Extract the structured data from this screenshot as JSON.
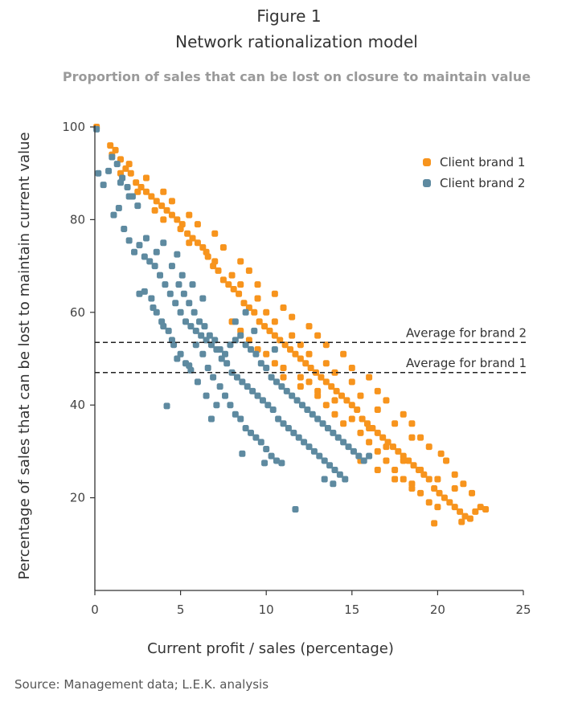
{
  "figure_label": "Figure 1",
  "title": "Network rationalization model",
  "subtitle": "Proportion of sales that can be lost on closure to maintain value",
  "source": "Source: Management data; L.E.K. analysis",
  "colors": {
    "brand1": "#F7941D",
    "brand2": "#5E8AA0",
    "axis": "#333333",
    "text": "#333333"
  },
  "chart_data": {
    "type": "scatter",
    "xlabel": "Current profit / sales (percentage)",
    "ylabel": "Percentage of sales that can be lost to maintain current value",
    "xlim": [
      0,
      25
    ],
    "ylim": [
      0,
      100
    ],
    "xticks": [
      0,
      5,
      10,
      15,
      20,
      25
    ],
    "yticks": [
      20,
      40,
      60,
      80,
      100
    ],
    "grid": false,
    "legend": "top-right",
    "reference_lines": [
      {
        "label": "Average for brand 2",
        "y": 53.5
      },
      {
        "label": "Average for brand 1",
        "y": 47
      }
    ],
    "series": [
      {
        "name": "Client brand 1",
        "color": "#F7941D",
        "points": [
          [
            0.1,
            100
          ],
          [
            0.9,
            96
          ],
          [
            1.2,
            95
          ],
          [
            1.5,
            93
          ],
          [
            1.8,
            91
          ],
          [
            2.1,
            90
          ],
          [
            2.4,
            88
          ],
          [
            2.7,
            87
          ],
          [
            3.0,
            86
          ],
          [
            3.3,
            85
          ],
          [
            3.6,
            84
          ],
          [
            3.9,
            83
          ],
          [
            4.2,
            82
          ],
          [
            4.5,
            81
          ],
          [
            4.8,
            80
          ],
          [
            5.1,
            79
          ],
          [
            5.4,
            77
          ],
          [
            5.7,
            76
          ],
          [
            6.0,
            75
          ],
          [
            6.3,
            74
          ],
          [
            6.6,
            72
          ],
          [
            6.9,
            70
          ],
          [
            7.2,
            69
          ],
          [
            7.5,
            67
          ],
          [
            7.8,
            66
          ],
          [
            8.1,
            65
          ],
          [
            8.4,
            64
          ],
          [
            8.7,
            62
          ],
          [
            9.0,
            61
          ],
          [
            9.3,
            60
          ],
          [
            9.6,
            58
          ],
          [
            9.9,
            57
          ],
          [
            10.2,
            56
          ],
          [
            10.5,
            55
          ],
          [
            10.8,
            54
          ],
          [
            11.1,
            53
          ],
          [
            11.4,
            52
          ],
          [
            11.7,
            51
          ],
          [
            12.0,
            50
          ],
          [
            12.3,
            49
          ],
          [
            12.6,
            48
          ],
          [
            12.9,
            47
          ],
          [
            13.2,
            46
          ],
          [
            13.5,
            45
          ],
          [
            13.8,
            44
          ],
          [
            14.1,
            43
          ],
          [
            14.4,
            42
          ],
          [
            14.7,
            41
          ],
          [
            15.0,
            40
          ],
          [
            15.3,
            39
          ],
          [
            15.6,
            37
          ],
          [
            15.9,
            36
          ],
          [
            16.2,
            35
          ],
          [
            16.5,
            34
          ],
          [
            16.8,
            33
          ],
          [
            17.1,
            32
          ],
          [
            17.4,
            31
          ],
          [
            17.7,
            30
          ],
          [
            18.0,
            29
          ],
          [
            18.3,
            28
          ],
          [
            18.6,
            27
          ],
          [
            18.9,
            26
          ],
          [
            19.2,
            25
          ],
          [
            19.5,
            24
          ],
          [
            19.8,
            22
          ],
          [
            20.1,
            21
          ],
          [
            20.4,
            20
          ],
          [
            20.7,
            19
          ],
          [
            21.0,
            18
          ],
          [
            21.3,
            17
          ],
          [
            21.6,
            16
          ],
          [
            21.9,
            15.5
          ],
          [
            22.2,
            17
          ],
          [
            22.5,
            18
          ],
          [
            22.8,
            17.5
          ],
          [
            19.8,
            14.5
          ],
          [
            21.4,
            14.8
          ],
          [
            20.2,
            29.5
          ],
          [
            18.5,
            33
          ],
          [
            17.5,
            36
          ],
          [
            16.5,
            39
          ],
          [
            15.5,
            42
          ],
          [
            15.0,
            45
          ],
          [
            14.0,
            47
          ],
          [
            13.5,
            49
          ],
          [
            12.5,
            51
          ],
          [
            12.0,
            53
          ],
          [
            11.5,
            55
          ],
          [
            10.5,
            58
          ],
          [
            10.0,
            60
          ],
          [
            9.5,
            63
          ],
          [
            8.5,
            66
          ],
          [
            8.0,
            68
          ],
          [
            7.0,
            71
          ],
          [
            6.5,
            73
          ],
          [
            5.5,
            75
          ],
          [
            5.0,
            78
          ],
          [
            4.0,
            80
          ],
          [
            3.5,
            82
          ],
          [
            2.5,
            86
          ],
          [
            1.5,
            90
          ],
          [
            1.0,
            94
          ],
          [
            2.0,
            92
          ],
          [
            3.0,
            89
          ],
          [
            4.0,
            86
          ],
          [
            4.5,
            84
          ],
          [
            5.5,
            81
          ],
          [
            6.0,
            79
          ],
          [
            7.0,
            77
          ],
          [
            7.5,
            74
          ],
          [
            8.5,
            71
          ],
          [
            9.0,
            69
          ],
          [
            9.5,
            66
          ],
          [
            10.5,
            64
          ],
          [
            11.0,
            61
          ],
          [
            11.5,
            59
          ],
          [
            12.5,
            57
          ],
          [
            13.0,
            55
          ],
          [
            13.5,
            53
          ],
          [
            14.5,
            51
          ],
          [
            15.0,
            48
          ],
          [
            16.0,
            46
          ],
          [
            16.5,
            43
          ],
          [
            17.0,
            41
          ],
          [
            18.0,
            38
          ],
          [
            18.5,
            36
          ],
          [
            19.0,
            33
          ],
          [
            19.5,
            31
          ],
          [
            20.5,
            28
          ],
          [
            21.0,
            25
          ],
          [
            21.5,
            23
          ],
          [
            22.0,
            21
          ],
          [
            9.5,
            52
          ],
          [
            10.5,
            49
          ],
          [
            11.0,
            46
          ],
          [
            12.0,
            44
          ],
          [
            13.0,
            42
          ],
          [
            13.5,
            40
          ],
          [
            14.0,
            38
          ],
          [
            14.5,
            36
          ],
          [
            15.5,
            34
          ],
          [
            16.0,
            32
          ],
          [
            16.5,
            30
          ],
          [
            17.0,
            28
          ],
          [
            17.5,
            26
          ],
          [
            18.0,
            24
          ],
          [
            18.5,
            23
          ],
          [
            19.0,
            21
          ],
          [
            19.5,
            19
          ],
          [
            20.0,
            18
          ],
          [
            8.0,
            58
          ],
          [
            8.5,
            56
          ],
          [
            9.0,
            54
          ],
          [
            10.0,
            51
          ],
          [
            11.0,
            48
          ],
          [
            12.0,
            46
          ],
          [
            12.5,
            45
          ],
          [
            13.0,
            43
          ],
          [
            14.0,
            41
          ],
          [
            15.0,
            37
          ],
          [
            16.0,
            35
          ],
          [
            17.0,
            31
          ],
          [
            18.0,
            28
          ],
          [
            19.0,
            26
          ],
          [
            20.0,
            24
          ],
          [
            21.0,
            22
          ],
          [
            17.5,
            24
          ],
          [
            18.5,
            22
          ],
          [
            16.5,
            26
          ],
          [
            15.5,
            28
          ]
        ]
      },
      {
        "name": "Client brand 2",
        "color": "#5E8AA0",
        "points": [
          [
            0.1,
            99.5
          ],
          [
            0.2,
            90
          ],
          [
            0.5,
            87.5
          ],
          [
            0.8,
            90.5
          ],
          [
            1.0,
            93.5
          ],
          [
            1.3,
            92
          ],
          [
            1.6,
            89
          ],
          [
            1.9,
            87
          ],
          [
            2.2,
            85
          ],
          [
            2.5,
            83
          ],
          [
            1.1,
            81
          ],
          [
            1.4,
            82.5
          ],
          [
            1.7,
            78
          ],
          [
            2.0,
            75.5
          ],
          [
            2.3,
            73
          ],
          [
            2.6,
            74.5
          ],
          [
            2.9,
            72
          ],
          [
            3.2,
            71
          ],
          [
            3.5,
            70
          ],
          [
            3.8,
            68
          ],
          [
            4.1,
            66
          ],
          [
            4.4,
            64
          ],
          [
            4.7,
            62
          ],
          [
            5.0,
            60
          ],
          [
            5.3,
            58
          ],
          [
            5.6,
            57
          ],
          [
            5.9,
            56
          ],
          [
            6.2,
            55
          ],
          [
            6.5,
            54
          ],
          [
            6.8,
            53
          ],
          [
            7.1,
            52
          ],
          [
            7.4,
            50
          ],
          [
            7.7,
            49
          ],
          [
            8.0,
            47
          ],
          [
            8.3,
            46
          ],
          [
            8.6,
            45
          ],
          [
            8.9,
            44
          ],
          [
            9.2,
            43
          ],
          [
            9.5,
            42
          ],
          [
            9.8,
            41
          ],
          [
            10.1,
            40
          ],
          [
            10.4,
            39
          ],
          [
            10.7,
            37
          ],
          [
            11.0,
            36
          ],
          [
            11.3,
            35
          ],
          [
            11.6,
            34
          ],
          [
            11.9,
            33
          ],
          [
            12.2,
            32
          ],
          [
            12.5,
            31
          ],
          [
            12.8,
            30
          ],
          [
            13.1,
            29
          ],
          [
            13.4,
            28
          ],
          [
            13.7,
            27
          ],
          [
            14.0,
            26
          ],
          [
            14.3,
            25
          ],
          [
            14.6,
            24
          ],
          [
            13.9,
            23
          ],
          [
            13.4,
            24
          ],
          [
            11.7,
            17.5
          ],
          [
            4.2,
            39.8
          ],
          [
            2.6,
            64
          ],
          [
            2.9,
            64.5
          ],
          [
            3.4,
            61
          ],
          [
            3.9,
            58
          ],
          [
            4.3,
            56
          ],
          [
            4.6,
            53
          ],
          [
            5.0,
            51
          ],
          [
            5.3,
            49
          ],
          [
            5.6,
            47.5
          ],
          [
            5.9,
            53
          ],
          [
            6.3,
            51
          ],
          [
            6.6,
            48
          ],
          [
            6.9,
            46
          ],
          [
            7.3,
            44
          ],
          [
            7.6,
            42
          ],
          [
            7.9,
            40
          ],
          [
            8.2,
            38
          ],
          [
            8.5,
            37
          ],
          [
            8.8,
            35
          ],
          [
            9.1,
            34
          ],
          [
            9.4,
            33
          ],
          [
            9.7,
            32
          ],
          [
            10.0,
            30.5
          ],
          [
            10.3,
            29
          ],
          [
            10.6,
            28
          ],
          [
            10.9,
            27.5
          ],
          [
            8.6,
            29.5
          ],
          [
            9.9,
            27.5
          ],
          [
            7.1,
            40
          ],
          [
            6.8,
            37
          ],
          [
            6.5,
            42
          ],
          [
            6.0,
            45
          ],
          [
            5.5,
            48.5
          ],
          [
            4.8,
            50
          ],
          [
            4.5,
            54
          ],
          [
            4.0,
            57
          ],
          [
            3.6,
            60
          ],
          [
            3.3,
            63
          ],
          [
            4.9,
            66
          ],
          [
            5.2,
            64
          ],
          [
            5.5,
            62
          ],
          [
            5.8,
            60
          ],
          [
            6.1,
            58
          ],
          [
            6.4,
            57
          ],
          [
            6.7,
            55
          ],
          [
            7.0,
            54
          ],
          [
            7.3,
            52
          ],
          [
            7.6,
            51
          ],
          [
            7.9,
            53
          ],
          [
            8.2,
            54
          ],
          [
            8.5,
            55
          ],
          [
            8.8,
            53
          ],
          [
            9.1,
            52
          ],
          [
            9.4,
            51
          ],
          [
            9.7,
            49
          ],
          [
            10.0,
            48
          ],
          [
            10.3,
            46
          ],
          [
            10.6,
            45
          ],
          [
            10.9,
            44
          ],
          [
            11.2,
            43
          ],
          [
            11.5,
            42
          ],
          [
            11.8,
            41
          ],
          [
            12.1,
            40
          ],
          [
            12.4,
            39
          ],
          [
            12.7,
            38
          ],
          [
            13.0,
            37
          ],
          [
            13.3,
            36
          ],
          [
            13.6,
            35
          ],
          [
            13.9,
            34
          ],
          [
            14.2,
            33
          ],
          [
            14.5,
            32
          ],
          [
            14.8,
            31
          ],
          [
            15.1,
            30
          ],
          [
            15.4,
            29
          ],
          [
            15.7,
            28
          ],
          [
            16.0,
            29
          ],
          [
            4.5,
            70
          ],
          [
            4.8,
            72.5
          ],
          [
            5.1,
            68
          ],
          [
            2.0,
            85
          ],
          [
            1.5,
            88
          ],
          [
            3.0,
            76
          ],
          [
            3.6,
            73
          ],
          [
            4.0,
            75
          ],
          [
            5.7,
            66
          ],
          [
            6.3,
            63
          ],
          [
            8.2,
            58
          ],
          [
            8.8,
            60
          ],
          [
            9.3,
            56
          ],
          [
            10.5,
            52
          ]
        ]
      }
    ]
  }
}
